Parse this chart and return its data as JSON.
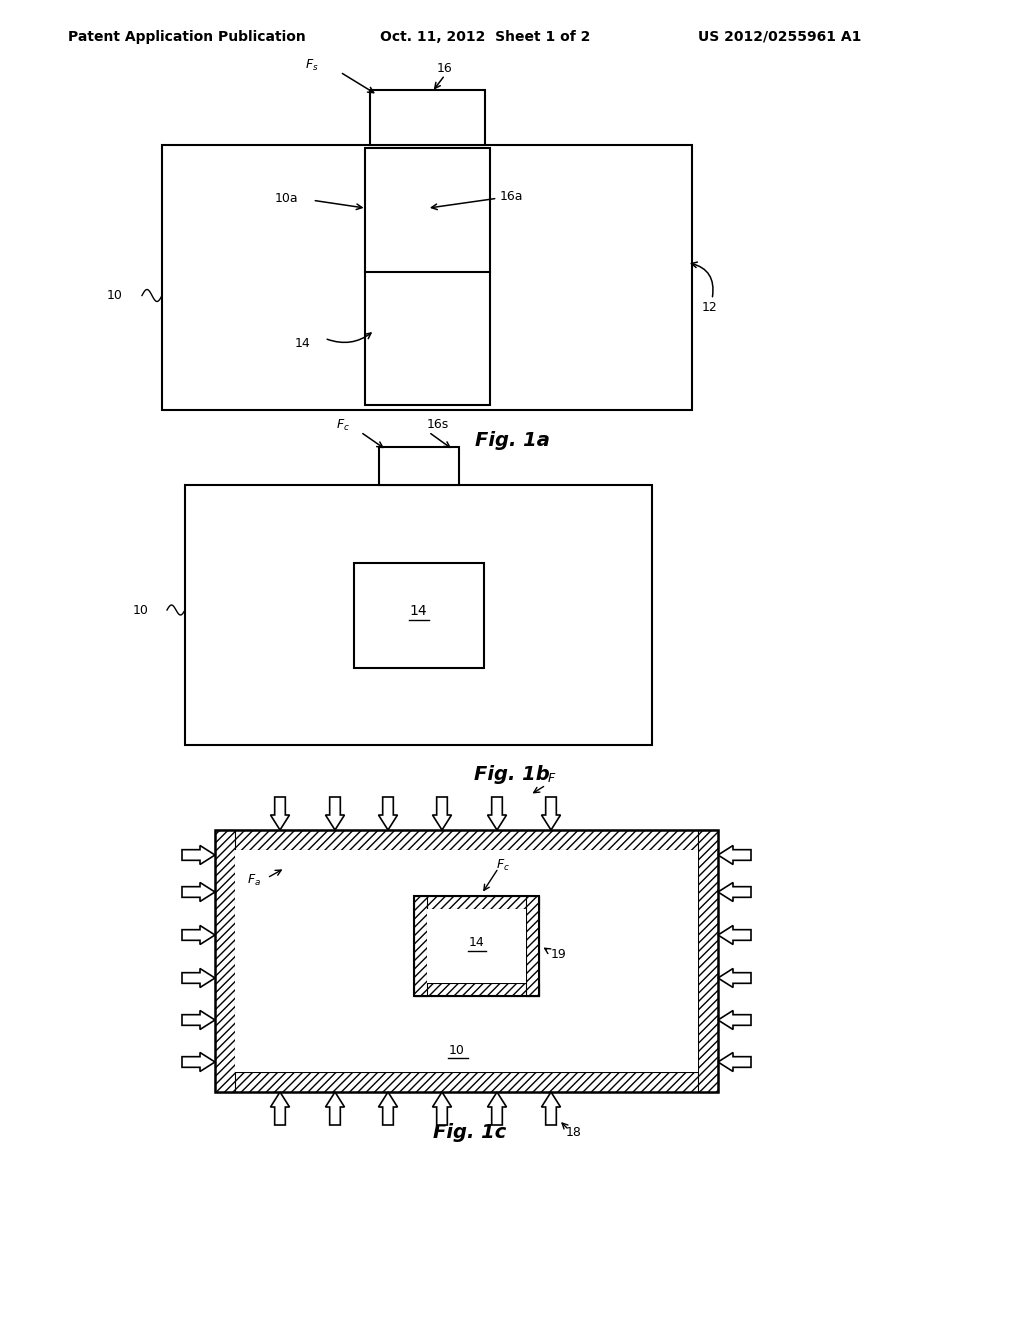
{
  "bg_color": "#ffffff",
  "header_left": "Patent Application Publication",
  "header_mid": "Oct. 11, 2012  Sheet 1 of 2",
  "header_right": "US 2012/0255961 A1",
  "fig1a_caption": "Fig. 1a",
  "fig1b_caption": "Fig. 1b",
  "fig1c_caption": "Fig. 1c",
  "line_color": "#000000",
  "text_color": "#000000"
}
